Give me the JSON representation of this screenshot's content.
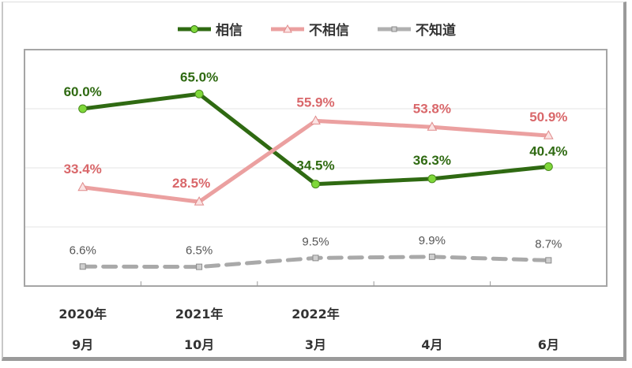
{
  "chart_data": {
    "type": "line",
    "title": "",
    "xlabel": "",
    "ylabel": "",
    "ylim": [
      0,
      80
    ],
    "grid": true,
    "legend_position": "top",
    "categories": [
      "2020年 9月",
      "2021年 10月",
      "2022年 3月",
      "4月",
      "6月"
    ],
    "category_lines": [
      [
        "2020年",
        "9月"
      ],
      [
        "2021年",
        "10月"
      ],
      [
        "2022年",
        "3月"
      ],
      [
        "",
        "4月"
      ],
      [
        "",
        "6月"
      ]
    ],
    "series": [
      {
        "name": "相信",
        "values": [
          60.0,
          65.0,
          34.5,
          36.3,
          40.4
        ],
        "labels": [
          "60.0%",
          "65.0%",
          "34.5%",
          "36.3%",
          "40.4%"
        ],
        "line_color": "#2f6a12",
        "marker_color": "#7fd83a",
        "label_color": "#2f6a12",
        "marker": "circle",
        "dash": false
      },
      {
        "name": "不相信",
        "values": [
          33.4,
          28.5,
          55.9,
          53.8,
          50.9
        ],
        "labels": [
          "33.4%",
          "28.5%",
          "55.9%",
          "53.8%",
          "50.9%"
        ],
        "line_color": "#eba0a0",
        "marker_color": "#f4c4c4",
        "label_color": "#d9676a",
        "marker": "triangle",
        "dash": false
      },
      {
        "name": "不知道",
        "values": [
          6.6,
          6.5,
          9.5,
          9.9,
          8.7
        ],
        "labels": [
          "6.6%",
          "6.5%",
          "9.5%",
          "9.9%",
          "8.7%"
        ],
        "line_color": "#a9a9a9",
        "marker_color": "#bcbcbc",
        "label_color": "#555555",
        "marker": "square",
        "dash": true
      }
    ]
  },
  "legend": {
    "items": [
      {
        "label": "相信"
      },
      {
        "label": "不相信"
      },
      {
        "label": "不知道"
      }
    ]
  }
}
